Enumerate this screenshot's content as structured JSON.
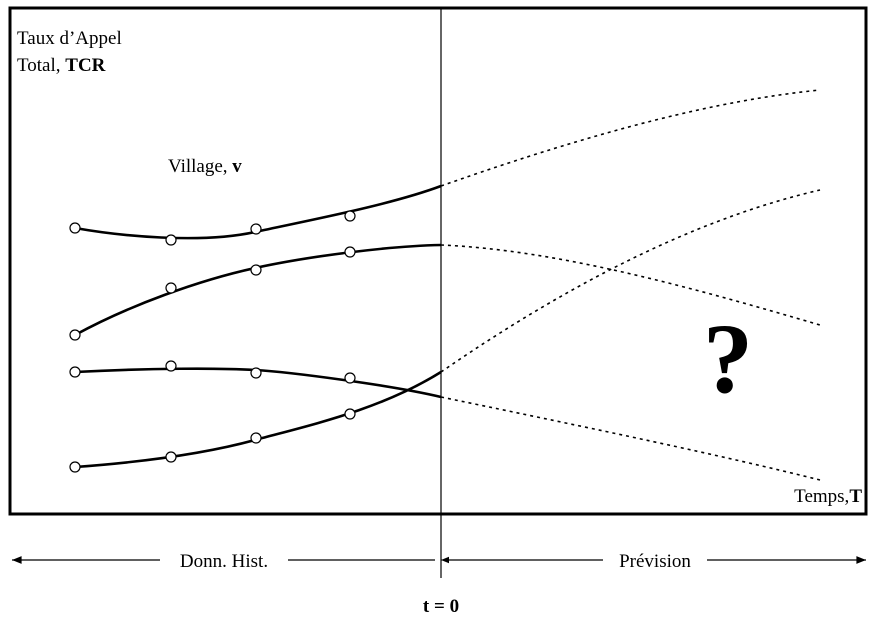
{
  "y_axis_label": {
    "line1": "Taux d’Appel",
    "line2": "Total, ",
    "line2_bold": "TCR"
  },
  "series_label": {
    "text": "Village, ",
    "bold": "v"
  },
  "unknown": "?",
  "x_axis_label": {
    "text": "Temps,",
    "bold": "T"
  },
  "periods": {
    "history": "Donn. Hist.",
    "forecast": "Prévision"
  },
  "origin_label": "t = 0"
}
